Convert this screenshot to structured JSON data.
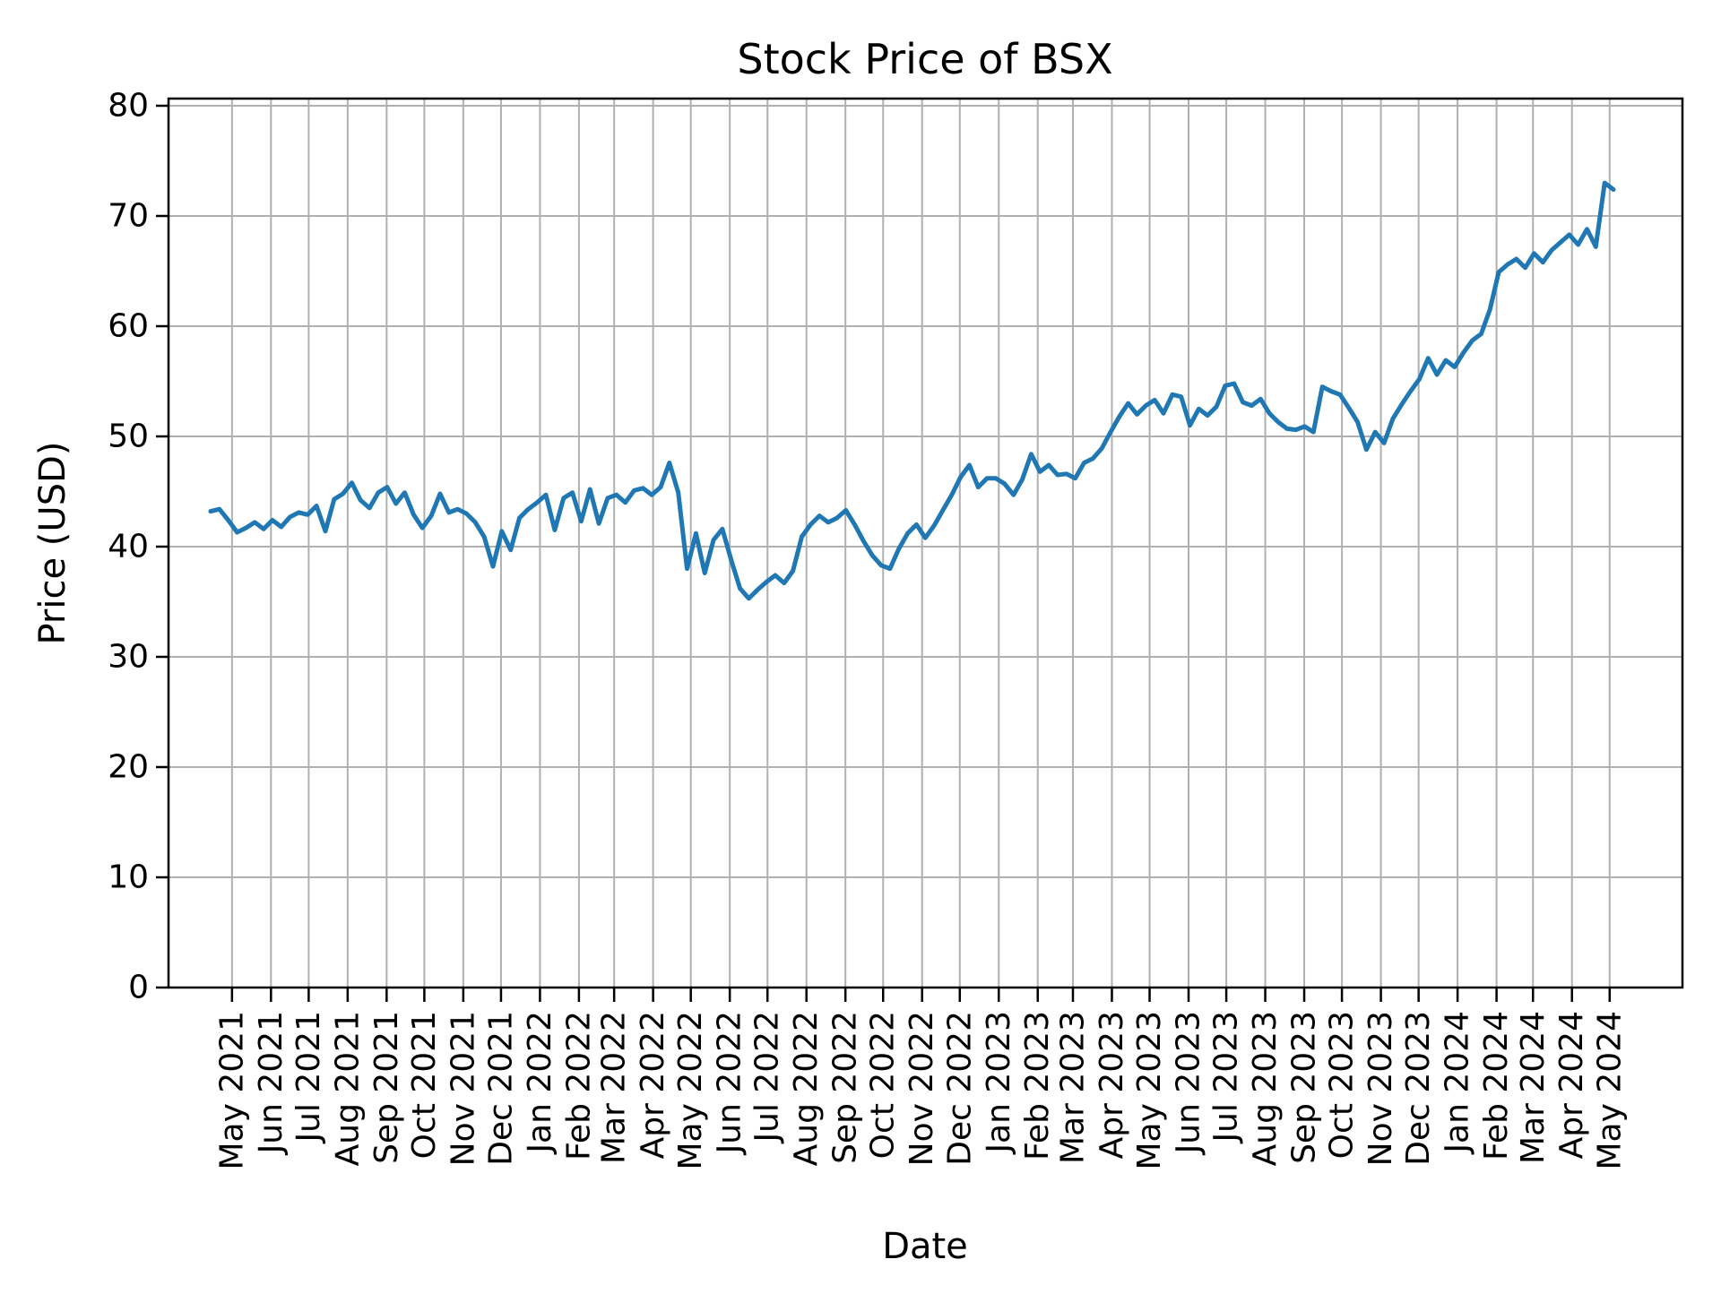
{
  "figure": {
    "background": "#ffffff"
  },
  "chart_data": {
    "type": "line",
    "title": "Stock Price of BSX",
    "xlabel": "Date",
    "ylabel": "Price (USD)",
    "ylim": [
      0,
      80
    ],
    "y_ticks": [
      0,
      10,
      20,
      30,
      40,
      50,
      60,
      70,
      80
    ],
    "x_tick_labels": [
      "May 2021",
      "Jun 2021",
      "Jul 2021",
      "Aug 2021",
      "Sep 2021",
      "Oct 2021",
      "Nov 2021",
      "Dec 2021",
      "Jan 2022",
      "Feb 2022",
      "Mar 2022",
      "Apr 2022",
      "May 2022",
      "Jun 2022",
      "Jul 2022",
      "Aug 2022",
      "Sep 2022",
      "Oct 2022",
      "Nov 2022",
      "Dec 2022",
      "Jan 2023",
      "Feb 2023",
      "Mar 2023",
      "Apr 2023",
      "May 2023",
      "Jun 2023",
      "Jul 2023",
      "Aug 2023",
      "Sep 2023",
      "Oct 2023",
      "Nov 2023",
      "Dec 2023",
      "Jan 2024",
      "Feb 2024",
      "Mar 2024",
      "Apr 2024",
      "May 2024"
    ],
    "grid": true,
    "legend": "none",
    "line_color": "#1f77b4",
    "grid_color": "#b0b0b0",
    "series": [
      {
        "name": "BSX",
        "cadence": "weekly",
        "x_start": "2021-04-14",
        "x_end": "2024-05-04",
        "values": [
          43.2,
          43.4,
          42.4,
          41.3,
          41.7,
          42.2,
          41.6,
          42.4,
          41.8,
          42.7,
          43.1,
          42.9,
          43.7,
          41.4,
          44.3,
          44.8,
          45.8,
          44.2,
          43.5,
          44.9,
          45.4,
          43.9,
          44.9,
          42.9,
          41.7,
          42.8,
          44.8,
          43.1,
          43.4,
          43.0,
          42.2,
          40.9,
          38.2,
          41.4,
          39.7,
          42.6,
          43.4,
          44.0,
          44.7,
          41.5,
          44.4,
          44.9,
          42.3,
          45.2,
          42.1,
          44.4,
          44.7,
          44.0,
          45.1,
          45.3,
          44.7,
          45.4,
          47.6,
          44.9,
          38.0,
          41.2,
          37.6,
          40.6,
          41.6,
          38.8,
          36.2,
          35.3,
          36.1,
          36.8,
          37.4,
          36.7,
          37.8,
          40.9,
          42.0,
          42.8,
          42.2,
          42.6,
          43.3,
          42.0,
          40.5,
          39.2,
          38.3,
          38.0,
          39.8,
          41.2,
          42.0,
          40.8,
          41.9,
          43.3,
          44.7,
          46.3,
          47.4,
          45.4,
          46.2,
          46.2,
          45.7,
          44.7,
          46.1,
          48.4,
          46.8,
          47.4,
          46.5,
          46.6,
          46.2,
          47.6,
          48.0,
          48.9,
          50.4,
          51.8,
          53.0,
          52.0,
          52.8,
          53.3,
          52.1,
          53.8,
          53.6,
          51.0,
          52.5,
          51.9,
          52.7,
          54.6,
          54.8,
          53.1,
          52.8,
          53.4,
          52.1,
          51.3,
          50.7,
          50.6,
          50.9,
          50.4,
          54.5,
          54.1,
          53.8,
          52.6,
          51.3,
          48.8,
          50.4,
          49.4,
          51.6,
          52.9,
          54.1,
          55.2,
          57.1,
          55.6,
          56.9,
          56.3,
          57.6,
          58.7,
          59.3,
          61.5,
          64.9,
          65.6,
          66.1,
          65.3,
          66.6,
          65.8,
          66.9,
          67.6,
          68.3,
          67.4,
          68.8,
          67.2,
          73.0,
          72.4
        ]
      }
    ]
  }
}
